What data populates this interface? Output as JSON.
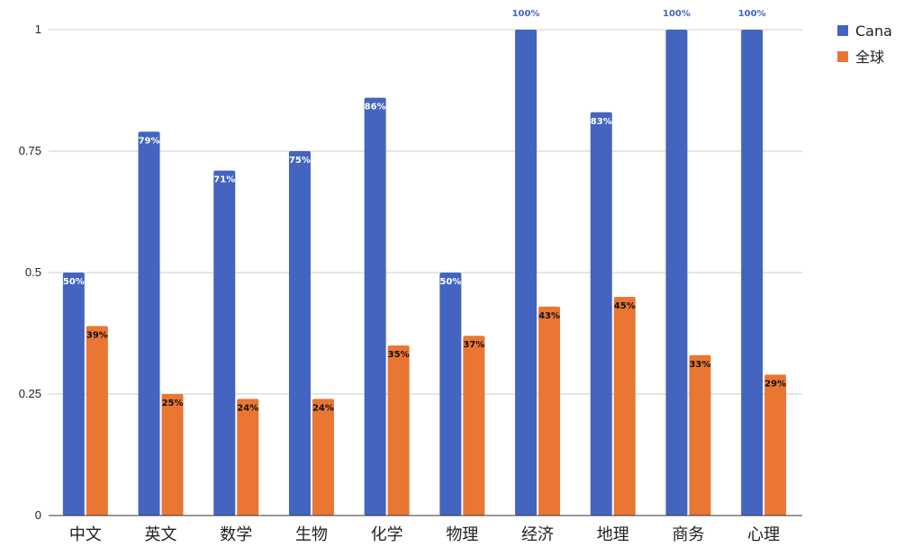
{
  "chart_data": {
    "type": "bar",
    "categories": [
      "中文",
      "英文",
      "数学",
      "生物",
      "化学",
      "物理",
      "经济",
      "地理",
      "商务",
      "心理"
    ],
    "series": [
      {
        "name": "Cana",
        "color": "#4365c0",
        "values": [
          0.5,
          0.79,
          0.71,
          0.75,
          0.86,
          0.5,
          1.0,
          0.83,
          1.0,
          1.0
        ],
        "labels": [
          "50%",
          "79%",
          "71%",
          "75%",
          "86%",
          "50%",
          "100%",
          "83%",
          "100%",
          "100%"
        ]
      },
      {
        "name": "全球",
        "color": "#e97633",
        "values": [
          0.39,
          0.25,
          0.24,
          0.24,
          0.35,
          0.37,
          0.43,
          0.45,
          0.33,
          0.29
        ],
        "labels": [
          "39%",
          "25%",
          "24%",
          "24%",
          "35%",
          "37%",
          "43%",
          "45%",
          "33%",
          "29%"
        ]
      }
    ],
    "ylim": [
      0,
      1
    ],
    "yticks": [
      0,
      0.25,
      0.5,
      0.75,
      1
    ],
    "ytick_labels": [
      "0",
      "0.25",
      "0.5",
      "0.75",
      "1"
    ],
    "grid": true,
    "legend_position": "top-right",
    "title": "",
    "xlabel": "",
    "ylabel": ""
  }
}
